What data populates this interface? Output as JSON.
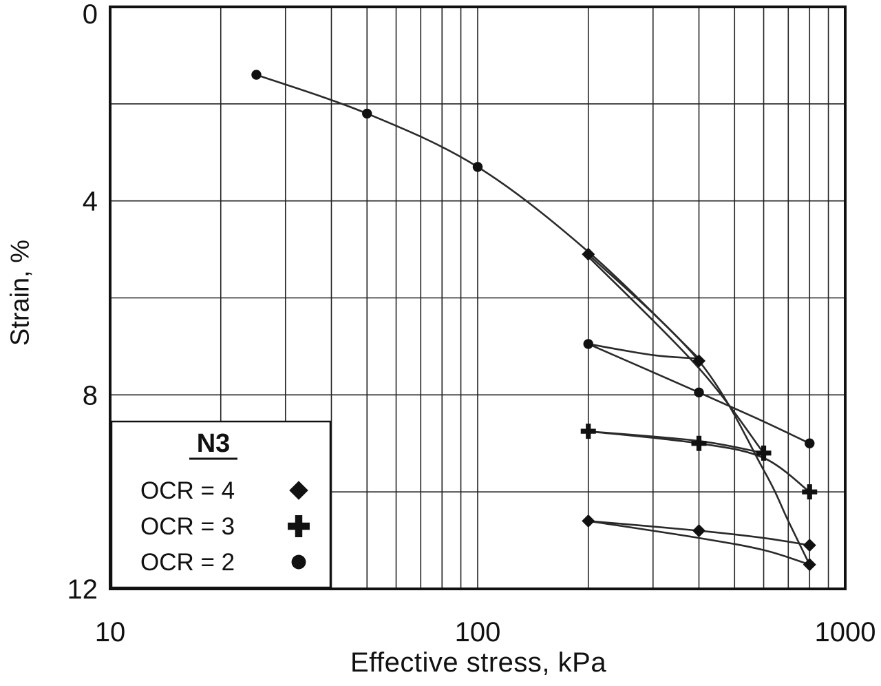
{
  "colors": {
    "background": "#ffffff",
    "grid": "#222222",
    "border": "#111111",
    "line": "#2a2a2a",
    "marker": "#111111",
    "text": "#111111"
  },
  "chart_data": {
    "type": "line",
    "title": "",
    "xlabel": "Effective stress, kPa",
    "ylabel": "Strain, %",
    "x_scale": "log",
    "xlim": [
      10,
      1000
    ],
    "ylim": [
      0,
      12
    ],
    "y_inverted": true,
    "grid": true,
    "x_ticks": [
      10,
      100,
      1000
    ],
    "y_ticks": [
      0,
      4,
      8,
      12
    ],
    "y_grid_step": 2,
    "legend": {
      "title": "N3",
      "position": "lower-left",
      "entries": [
        {
          "label": "OCR = 4",
          "marker": "diamond"
        },
        {
          "label": "OCR = 3",
          "marker": "plus"
        },
        {
          "label": "OCR = 2",
          "marker": "circle"
        }
      ]
    },
    "series": [
      {
        "name": "OCR = 2",
        "marker": "circle",
        "segments": {
          "load": [
            [
              25,
              1.4
            ],
            [
              50,
              2.2
            ],
            [
              100,
              3.3
            ],
            [
              200,
              5.05
            ],
            [
              400,
              7.25
            ]
          ],
          "unload": [
            [
              400,
              7.25
            ],
            [
              300,
              7.18
            ],
            [
              200,
              6.95
            ]
          ],
          "reload": [
            [
              200,
              6.95
            ],
            [
              400,
              7.95
            ],
            [
              600,
              8.55
            ],
            [
              800,
              9.0
            ]
          ]
        },
        "marker_points": [
          [
            25,
            1.4
          ],
          [
            50,
            2.2
          ],
          [
            100,
            3.3
          ],
          [
            200,
            6.95
          ],
          [
            400,
            7.95
          ],
          [
            800,
            9.0
          ]
        ]
      },
      {
        "name": "OCR = 3",
        "marker": "plus",
        "segments": {
          "load": [
            [
              200,
              5.15
            ],
            [
              400,
              7.45
            ],
            [
              600,
              9.2
            ]
          ],
          "unload": [
            [
              600,
              9.2
            ],
            [
              400,
              8.95
            ],
            [
              200,
              8.75
            ]
          ],
          "reload": [
            [
              200,
              8.75
            ],
            [
              400,
              9.0
            ],
            [
              600,
              9.3
            ],
            [
              800,
              10.0
            ]
          ]
        },
        "marker_points": [
          [
            200,
            8.75
          ],
          [
            400,
            9.0
          ],
          [
            600,
            9.2
          ],
          [
            800,
            10.0
          ]
        ]
      },
      {
        "name": "OCR = 4",
        "marker": "diamond",
        "segments": {
          "load": [
            [
              200,
              5.1
            ],
            [
              400,
              7.3
            ],
            [
              600,
              9.55
            ],
            [
              700,
              10.6
            ],
            [
              800,
              11.5
            ]
          ],
          "unload": [
            [
              800,
              11.5
            ],
            [
              600,
              11.2
            ],
            [
              400,
              10.95
            ],
            [
              200,
              10.6
            ]
          ],
          "reload": [
            [
              200,
              10.6
            ],
            [
              400,
              10.8
            ],
            [
              600,
              10.95
            ],
            [
              800,
              11.1
            ]
          ]
        },
        "marker_points": [
          [
            200,
            5.1
          ],
          [
            400,
            7.3
          ],
          [
            800,
            11.5
          ],
          [
            200,
            10.6
          ],
          [
            400,
            10.8
          ],
          [
            800,
            11.1
          ]
        ]
      }
    ]
  }
}
